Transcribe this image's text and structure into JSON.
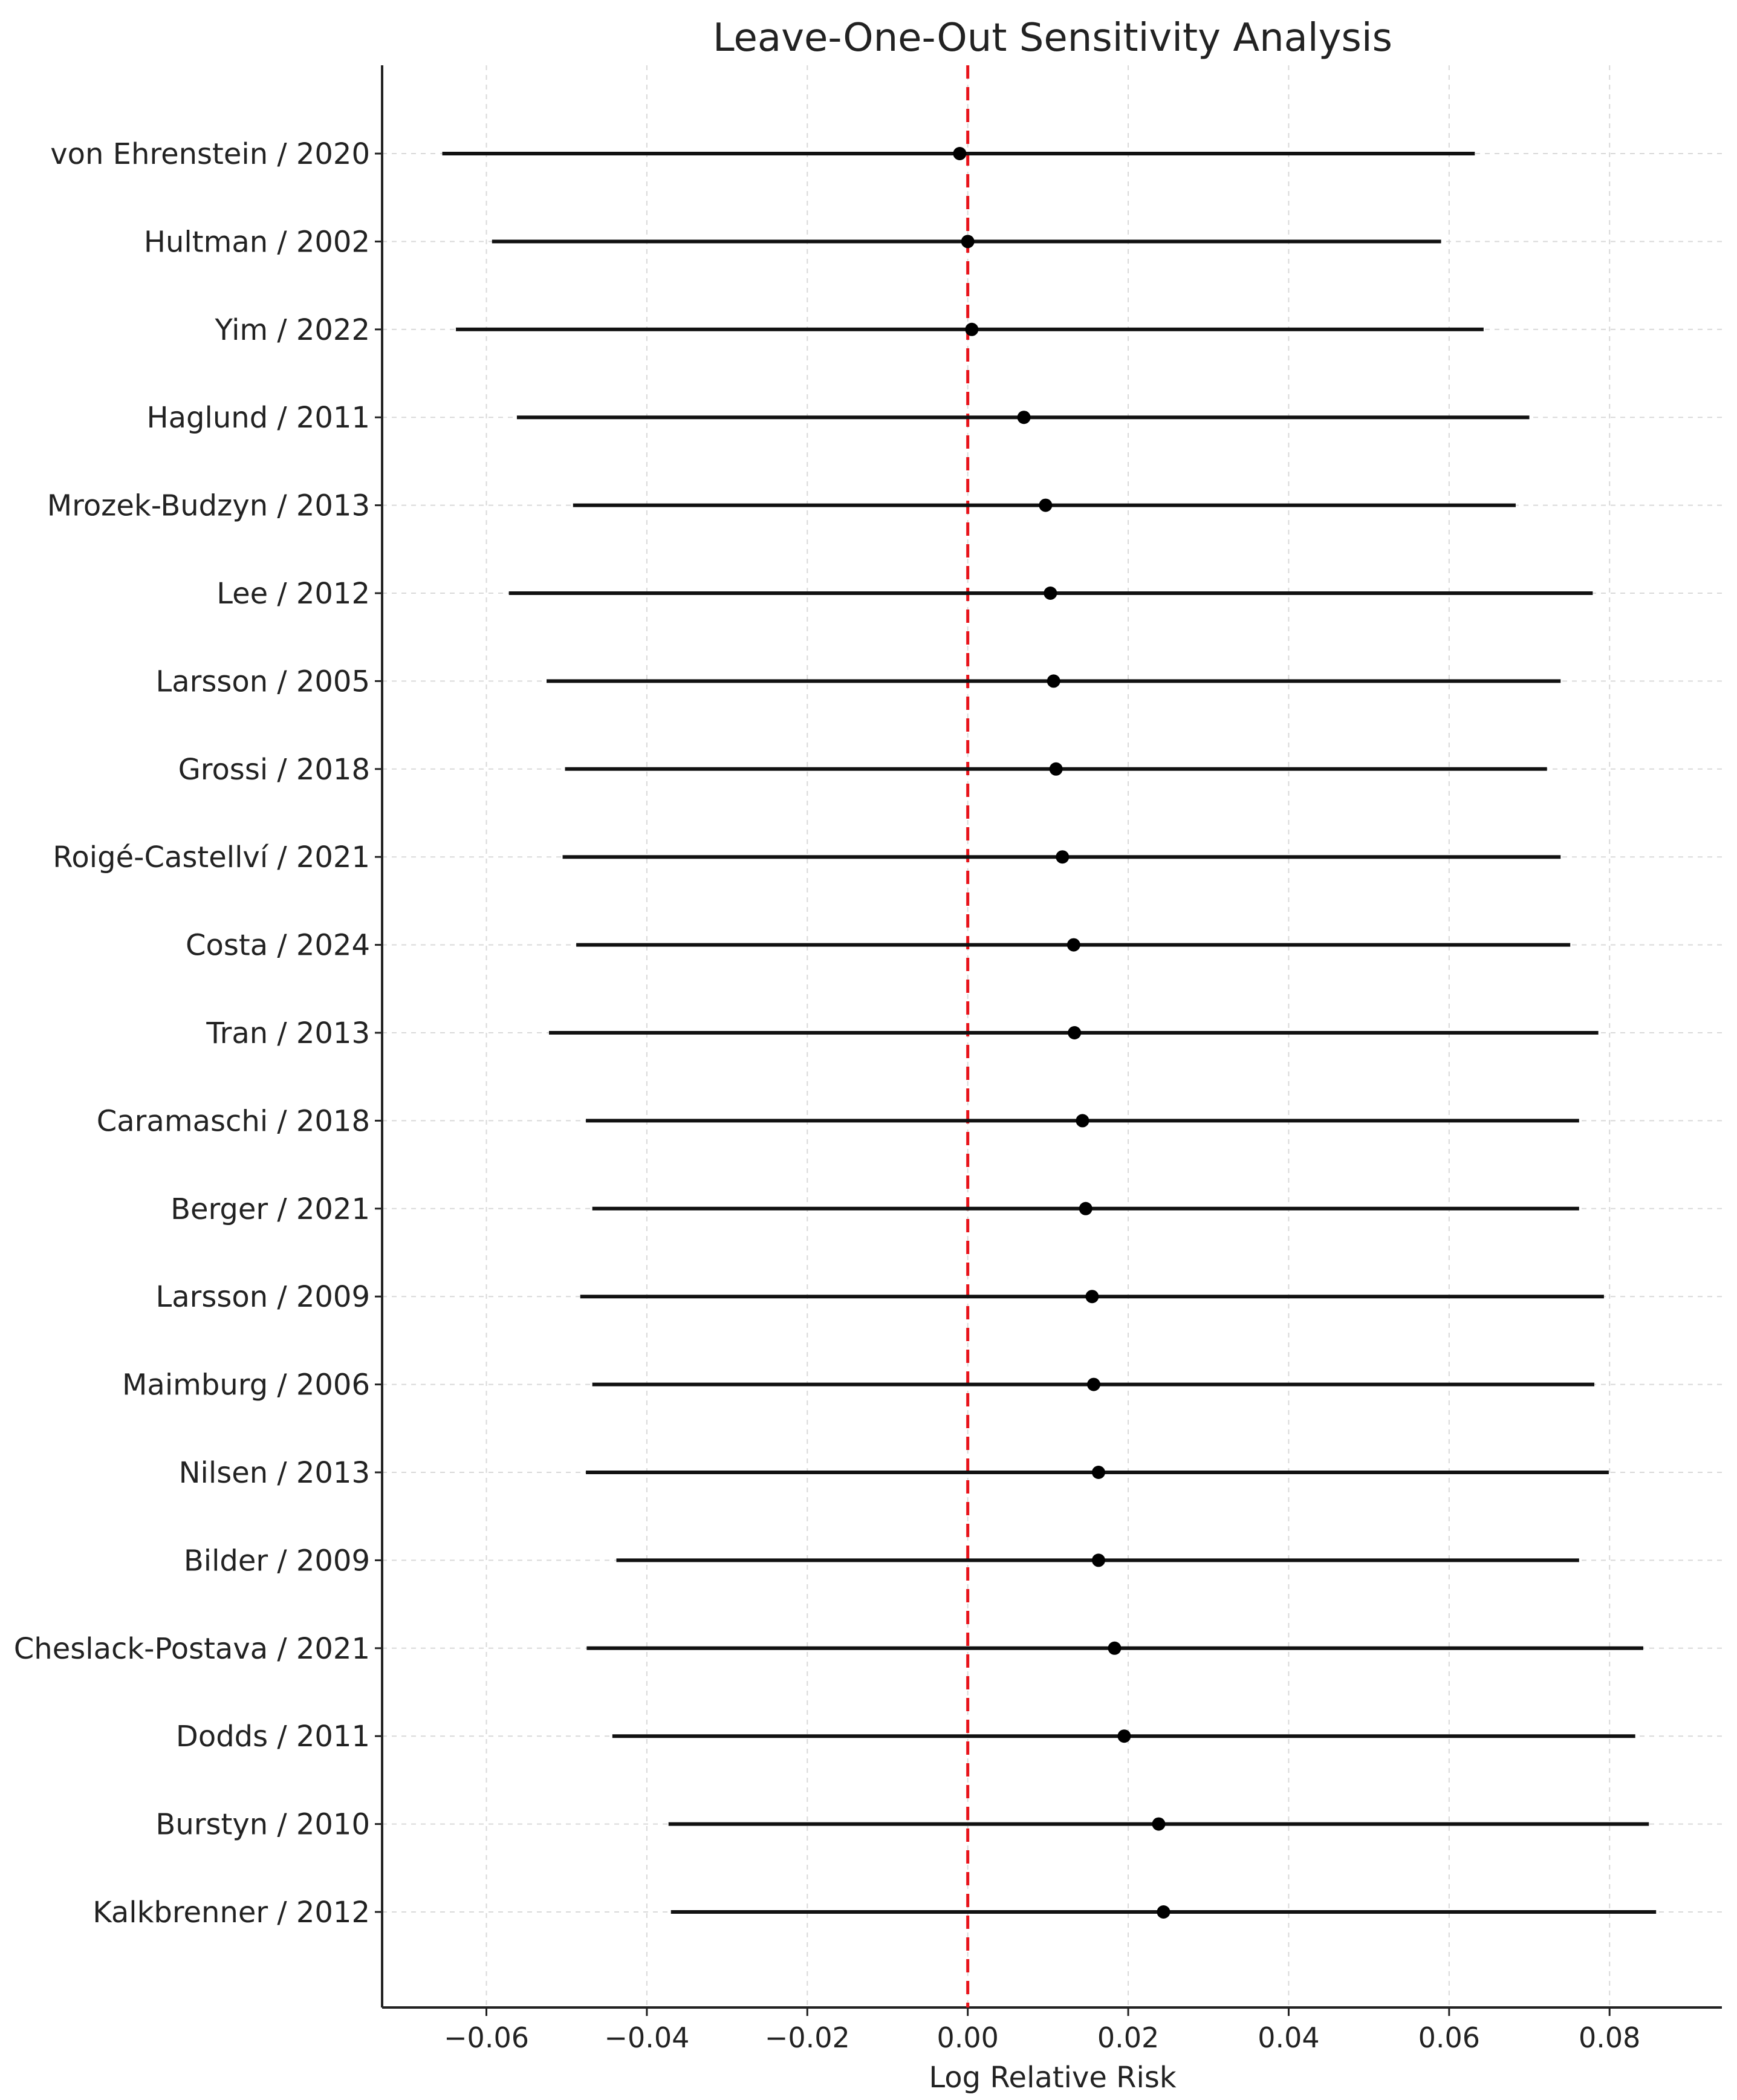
{
  "chart_data": {
    "type": "forest",
    "title": "Leave-One-Out Sensitivity Analysis",
    "xlabel": "Log Relative Risk",
    "ylabel": "",
    "xlim": [
      -0.073,
      0.094
    ],
    "x_ticks": [
      -0.06,
      -0.04,
      -0.02,
      0.0,
      0.02,
      0.04,
      0.06,
      0.08
    ],
    "x_tick_labels": [
      "−0.06",
      "−0.04",
      "−0.02",
      "0.00",
      "0.02",
      "0.04",
      "0.06",
      "0.08"
    ],
    "grid": true,
    "reference_line": {
      "x": 0.0,
      "style": "dashed",
      "color": "#e8131a"
    },
    "studies": [
      {
        "label": "von Ehrenstein / 2020",
        "estimate": -0.001,
        "lower": -0.0655,
        "upper": 0.0632
      },
      {
        "label": "Hultman / 2002",
        "estimate": 0.0,
        "lower": -0.0593,
        "upper": 0.059
      },
      {
        "label": "Yim / 2022",
        "estimate": 0.0005,
        "lower": -0.0638,
        "upper": 0.0643
      },
      {
        "label": "Haglund / 2011",
        "estimate": 0.007,
        "lower": -0.0562,
        "upper": 0.07
      },
      {
        "label": "Mrozek-Budzyn / 2013",
        "estimate": 0.0097,
        "lower": -0.0492,
        "upper": 0.0683
      },
      {
        "label": "Lee / 2012",
        "estimate": 0.0103,
        "lower": -0.0572,
        "upper": 0.0779
      },
      {
        "label": "Larsson / 2005",
        "estimate": 0.0107,
        "lower": -0.0525,
        "upper": 0.0739
      },
      {
        "label": "Grossi / 2018",
        "estimate": 0.011,
        "lower": -0.0502,
        "upper": 0.0722
      },
      {
        "label": "Roigé-Castellví / 2021",
        "estimate": 0.0118,
        "lower": -0.0505,
        "upper": 0.0739
      },
      {
        "label": "Costa / 2024",
        "estimate": 0.0132,
        "lower": -0.0488,
        "upper": 0.0751
      },
      {
        "label": "Tran / 2013",
        "estimate": 0.0133,
        "lower": -0.0522,
        "upper": 0.0786
      },
      {
        "label": "Caramaschi / 2018",
        "estimate": 0.0143,
        "lower": -0.0476,
        "upper": 0.0762
      },
      {
        "label": "Berger / 2021",
        "estimate": 0.0147,
        "lower": -0.0468,
        "upper": 0.0762
      },
      {
        "label": "Larsson / 2009",
        "estimate": 0.0155,
        "lower": -0.0483,
        "upper": 0.0793
      },
      {
        "label": "Maimburg / 2006",
        "estimate": 0.0157,
        "lower": -0.0468,
        "upper": 0.0781
      },
      {
        "label": "Nilsen / 2013",
        "estimate": 0.0163,
        "lower": -0.0476,
        "upper": 0.0799
      },
      {
        "label": "Bilder / 2009",
        "estimate": 0.0163,
        "lower": -0.0438,
        "upper": 0.0762
      },
      {
        "label": "Cheslack-Postava / 2021",
        "estimate": 0.0183,
        "lower": -0.0475,
        "upper": 0.0842
      },
      {
        "label": "Dodds / 2011",
        "estimate": 0.0195,
        "lower": -0.0443,
        "upper": 0.0832
      },
      {
        "label": "Burstyn / 2010",
        "estimate": 0.0238,
        "lower": -0.0373,
        "upper": 0.0849
      },
      {
        "label": "Kalkbrenner / 2012",
        "estimate": 0.0244,
        "lower": -0.037,
        "upper": 0.0858
      }
    ],
    "colors": {
      "reference_line": "#e8131a",
      "marker": "#000000",
      "ci_line": "#111111",
      "grid": "#d9d9d9",
      "axis": "#222222"
    }
  }
}
